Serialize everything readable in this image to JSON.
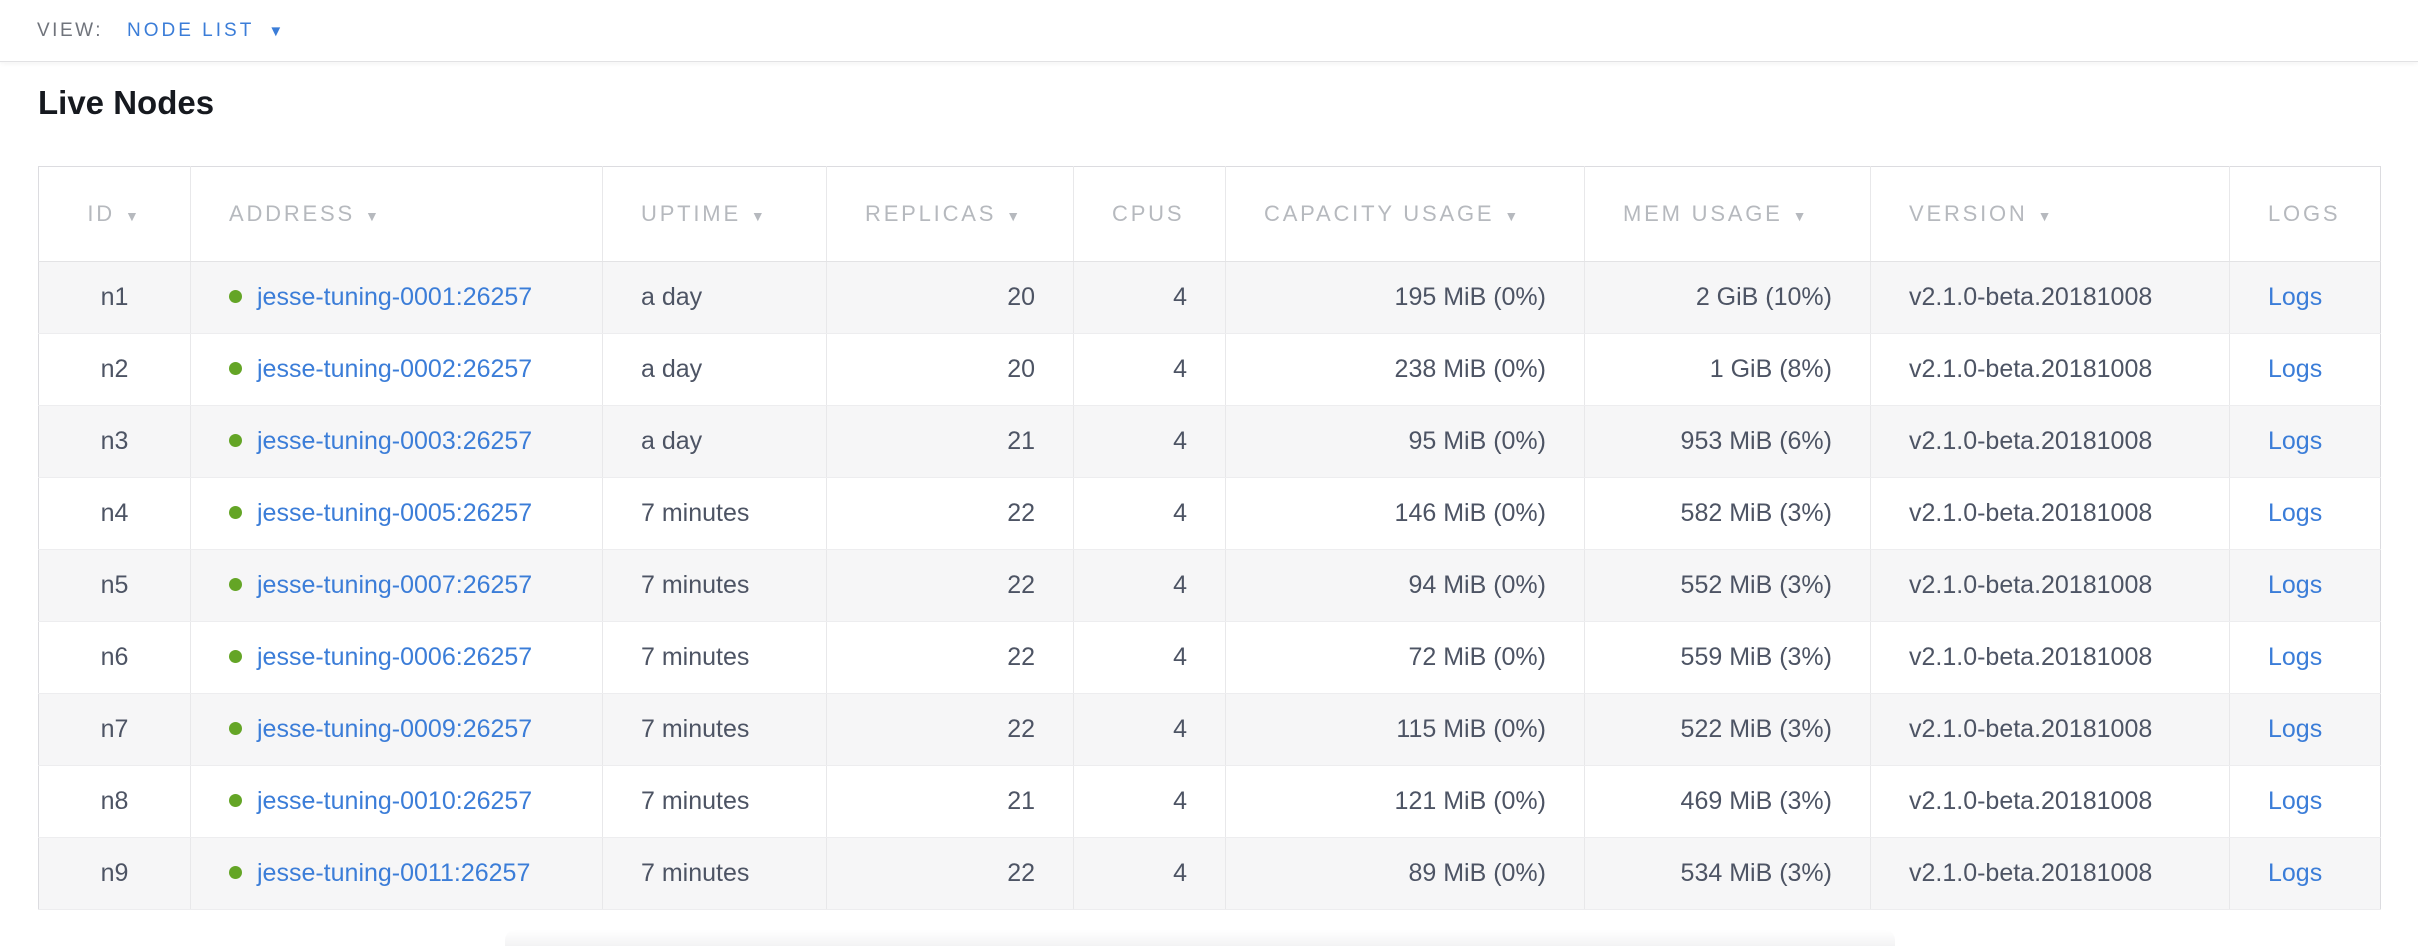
{
  "view_bar": {
    "label": "VIEW:",
    "selected": "NODE LIST"
  },
  "page": {
    "title": "Live Nodes"
  },
  "icons": {
    "sort_desc": "▼",
    "dropdown_caret": "▼",
    "status_dot": "node-live-dot"
  },
  "colors": {
    "accent_blue": "#3b7dd8",
    "status_green": "#64a526",
    "header_gray": "#b6b9be",
    "cell_text": "#4d5464",
    "stripe_bg": "#f6f6f7"
  },
  "table": {
    "columns": [
      {
        "key": "id",
        "label": "ID",
        "sortable": true
      },
      {
        "key": "address",
        "label": "ADDRESS",
        "sortable": true
      },
      {
        "key": "uptime",
        "label": "UPTIME",
        "sortable": true
      },
      {
        "key": "replicas",
        "label": "REPLICAS",
        "sortable": true
      },
      {
        "key": "cpus",
        "label": "CPUS",
        "sortable": false
      },
      {
        "key": "capacity",
        "label": "CAPACITY USAGE",
        "sortable": true
      },
      {
        "key": "mem",
        "label": "MEM USAGE",
        "sortable": true
      },
      {
        "key": "version",
        "label": "VERSION",
        "sortable": true
      },
      {
        "key": "logs",
        "label": "LOGS",
        "sortable": false
      }
    ],
    "rows": [
      {
        "id": "n1",
        "address": "jesse-tuning-0001:26257",
        "status": "live",
        "uptime": "a day",
        "replicas": "20",
        "cpus": "4",
        "capacity": "195 MiB (0%)",
        "mem": "2 GiB (10%)",
        "version": "v2.1.0-beta.20181008",
        "logs": "Logs"
      },
      {
        "id": "n2",
        "address": "jesse-tuning-0002:26257",
        "status": "live",
        "uptime": "a day",
        "replicas": "20",
        "cpus": "4",
        "capacity": "238 MiB (0%)",
        "mem": "1 GiB (8%)",
        "version": "v2.1.0-beta.20181008",
        "logs": "Logs"
      },
      {
        "id": "n3",
        "address": "jesse-tuning-0003:26257",
        "status": "live",
        "uptime": "a day",
        "replicas": "21",
        "cpus": "4",
        "capacity": "95 MiB (0%)",
        "mem": "953 MiB (6%)",
        "version": "v2.1.0-beta.20181008",
        "logs": "Logs"
      },
      {
        "id": "n4",
        "address": "jesse-tuning-0005:26257",
        "status": "live",
        "uptime": "7 minutes",
        "replicas": "22",
        "cpus": "4",
        "capacity": "146 MiB (0%)",
        "mem": "582 MiB (3%)",
        "version": "v2.1.0-beta.20181008",
        "logs": "Logs"
      },
      {
        "id": "n5",
        "address": "jesse-tuning-0007:26257",
        "status": "live",
        "uptime": "7 minutes",
        "replicas": "22",
        "cpus": "4",
        "capacity": "94 MiB (0%)",
        "mem": "552 MiB (3%)",
        "version": "v2.1.0-beta.20181008",
        "logs": "Logs"
      },
      {
        "id": "n6",
        "address": "jesse-tuning-0006:26257",
        "status": "live",
        "uptime": "7 minutes",
        "replicas": "22",
        "cpus": "4",
        "capacity": "72 MiB (0%)",
        "mem": "559 MiB (3%)",
        "version": "v2.1.0-beta.20181008",
        "logs": "Logs"
      },
      {
        "id": "n7",
        "address": "jesse-tuning-0009:26257",
        "status": "live",
        "uptime": "7 minutes",
        "replicas": "22",
        "cpus": "4",
        "capacity": "115 MiB (0%)",
        "mem": "522 MiB (3%)",
        "version": "v2.1.0-beta.20181008",
        "logs": "Logs"
      },
      {
        "id": "n8",
        "address": "jesse-tuning-0010:26257",
        "status": "live",
        "uptime": "7 minutes",
        "replicas": "21",
        "cpus": "4",
        "capacity": "121 MiB (0%)",
        "mem": "469 MiB (3%)",
        "version": "v2.1.0-beta.20181008",
        "logs": "Logs"
      },
      {
        "id": "n9",
        "address": "jesse-tuning-0011:26257",
        "status": "live",
        "uptime": "7 minutes",
        "replicas": "22",
        "cpus": "4",
        "capacity": "89 MiB (0%)",
        "mem": "534 MiB (3%)",
        "version": "v2.1.0-beta.20181008",
        "logs": "Logs"
      }
    ]
  }
}
